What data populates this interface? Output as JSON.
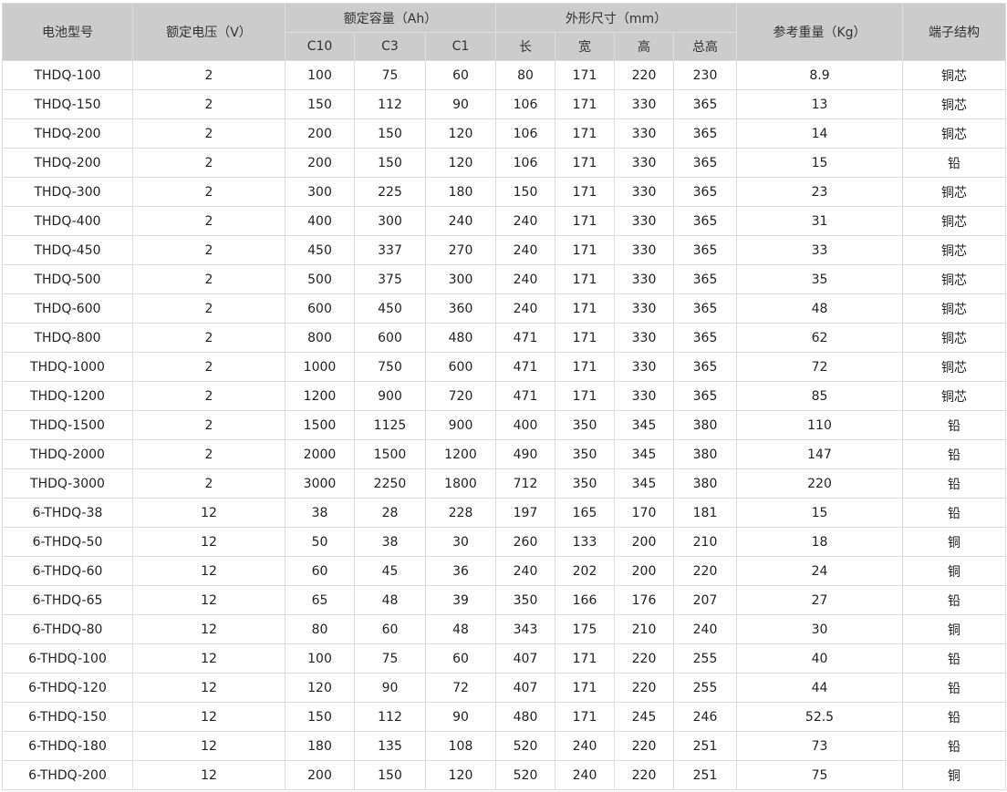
{
  "header": {
    "model": "电池型号",
    "voltage": "额定电压（V）",
    "capacity": "额定容量（Ah）",
    "dimensions": "外形尺寸（mm）",
    "weight": "参考重量（Kg）",
    "terminal": "端子结构",
    "capacity_sub": [
      "C10",
      "C3",
      "C1"
    ],
    "dimensions_sub": [
      "长",
      "宽",
      "高",
      "总高"
    ]
  },
  "rows": [
    [
      "THDQ-100",
      "2",
      "100",
      "75",
      "60",
      "80",
      "171",
      "220",
      "230",
      "8.9",
      "铜芯"
    ],
    [
      "THDQ-150",
      "2",
      "150",
      "112",
      "90",
      "106",
      "171",
      "330",
      "365",
      "13",
      "铜芯"
    ],
    [
      "THDQ-200",
      "2",
      "200",
      "150",
      "120",
      "106",
      "171",
      "330",
      "365",
      "14",
      "铜芯"
    ],
    [
      "THDQ-200",
      "2",
      "200",
      "150",
      "120",
      "106",
      "171",
      "330",
      "365",
      "15",
      "铅"
    ],
    [
      "THDQ-300",
      "2",
      "300",
      "225",
      "180",
      "150",
      "171",
      "330",
      "365",
      "23",
      "铜芯"
    ],
    [
      "THDQ-400",
      "2",
      "400",
      "300",
      "240",
      "240",
      "171",
      "330",
      "365",
      "31",
      "铜芯"
    ],
    [
      "THDQ-450",
      "2",
      "450",
      "337",
      "270",
      "240",
      "171",
      "330",
      "365",
      "33",
      "铜芯"
    ],
    [
      "THDQ-500",
      "2",
      "500",
      "375",
      "300",
      "240",
      "171",
      "330",
      "365",
      "35",
      "铜芯"
    ],
    [
      "THDQ-600",
      "2",
      "600",
      "450",
      "360",
      "240",
      "171",
      "330",
      "365",
      "48",
      "铜芯"
    ],
    [
      "THDQ-800",
      "2",
      "800",
      "600",
      "480",
      "471",
      "171",
      "330",
      "365",
      "62",
      "铜芯"
    ],
    [
      "THDQ-1000",
      "2",
      "1000",
      "750",
      "600",
      "471",
      "171",
      "330",
      "365",
      "72",
      "铜芯"
    ],
    [
      "THDQ-1200",
      "2",
      "1200",
      "900",
      "720",
      "471",
      "171",
      "330",
      "365",
      "85",
      "铜芯"
    ],
    [
      "THDQ-1500",
      "2",
      "1500",
      "1125",
      "900",
      "400",
      "350",
      "345",
      "380",
      "110",
      "铅"
    ],
    [
      "THDQ-2000",
      "2",
      "2000",
      "1500",
      "1200",
      "490",
      "350",
      "345",
      "380",
      "147",
      "铅"
    ],
    [
      "THDQ-3000",
      "2",
      "3000",
      "2250",
      "1800",
      "712",
      "350",
      "345",
      "380",
      "220",
      "铅"
    ],
    [
      "6-THDQ-38",
      "12",
      "38",
      "28",
      "228",
      "197",
      "165",
      "170",
      "181",
      "15",
      "铅"
    ],
    [
      "6-THDQ-50",
      "12",
      "50",
      "38",
      "30",
      "260",
      "133",
      "200",
      "210",
      "18",
      "铜"
    ],
    [
      "6-THDQ-60",
      "12",
      "60",
      "45",
      "36",
      "240",
      "202",
      "200",
      "220",
      "24",
      "铜"
    ],
    [
      "6-THDQ-65",
      "12",
      "65",
      "48",
      "39",
      "350",
      "166",
      "176",
      "207",
      "27",
      "铅"
    ],
    [
      "6-THDQ-80",
      "12",
      "80",
      "60",
      "48",
      "343",
      "175",
      "210",
      "240",
      "30",
      "铜"
    ],
    [
      "6-THDQ-100",
      "12",
      "100",
      "75",
      "60",
      "407",
      "171",
      "220",
      "255",
      "40",
      "铅"
    ],
    [
      "6-THDQ-120",
      "12",
      "120",
      "90",
      "72",
      "407",
      "171",
      "220",
      "255",
      "44",
      "铅"
    ],
    [
      "6-THDQ-150",
      "12",
      "150",
      "112",
      "90",
      "480",
      "171",
      "245",
      "246",
      "52.5",
      "铅"
    ],
    [
      "6-THDQ-180",
      "12",
      "180",
      "135",
      "108",
      "520",
      "240",
      "220",
      "251",
      "73",
      "铅"
    ],
    [
      "6-THDQ-200",
      "12",
      "200",
      "150",
      "120",
      "520",
      "240",
      "220",
      "251",
      "75",
      "铜"
    ]
  ]
}
